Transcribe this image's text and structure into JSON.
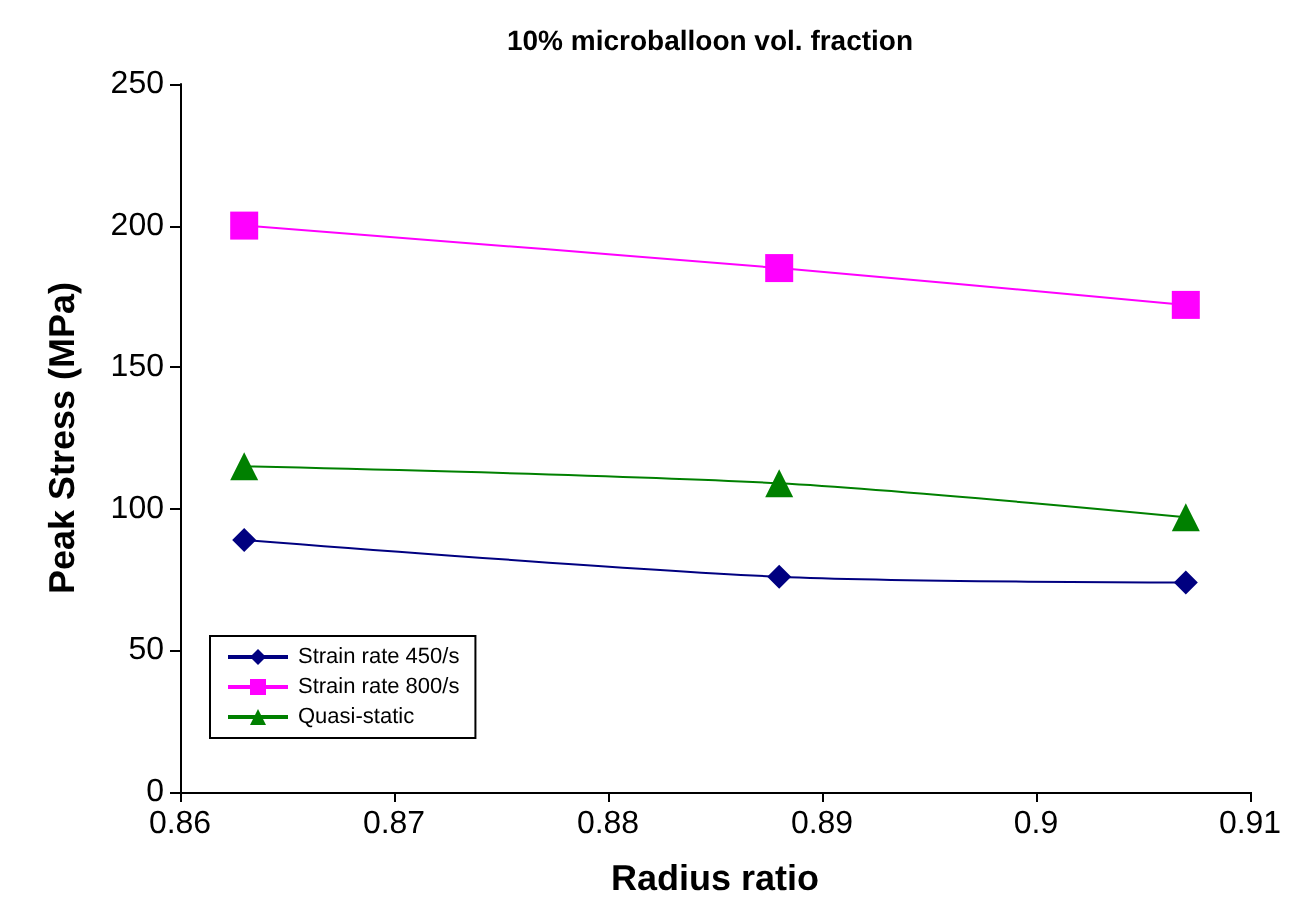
{
  "chart_data": {
    "type": "line",
    "title": "10% microballoon vol. fraction",
    "xlabel": "Radius ratio",
    "ylabel": "Peak Stress (MPa)",
    "x": [
      0.863,
      0.888,
      0.907
    ],
    "series": [
      {
        "name": "Strain rate 450/s",
        "color": "#000080",
        "marker": "diamond",
        "values": [
          89,
          76,
          74
        ]
      },
      {
        "name": "Strain rate 800/s",
        "color": "#ff00ff",
        "marker": "square",
        "values": [
          200,
          185,
          172
        ]
      },
      {
        "name": "Quasi-static",
        "color": "#008000",
        "marker": "triangle",
        "values": [
          115,
          109,
          97
        ]
      }
    ],
    "xlim": [
      0.86,
      0.91
    ],
    "xticks": [
      {
        "value": 0.86,
        "label": "0.86"
      },
      {
        "value": 0.87,
        "label": "0.87"
      },
      {
        "value": 0.88,
        "label": "0.88"
      },
      {
        "value": 0.89,
        "label": "0.89"
      },
      {
        "value": 0.9,
        "label": "0.9"
      },
      {
        "value": 0.91,
        "label": "0.91"
      }
    ],
    "ylim": [
      0,
      250
    ],
    "yticks": [
      0,
      50,
      100,
      150,
      200,
      250
    ],
    "grid": false,
    "legend": "bottom left",
    "line_style": "solid"
  }
}
